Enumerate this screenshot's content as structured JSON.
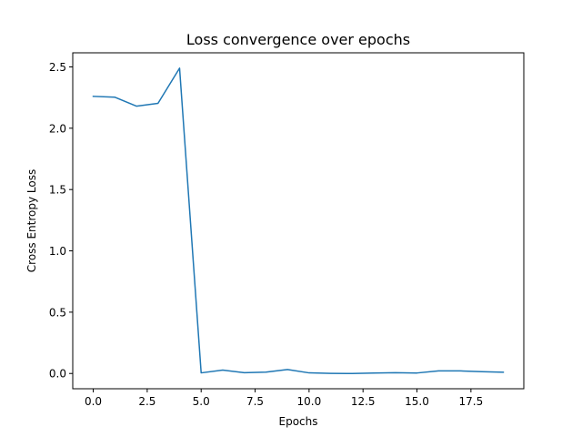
{
  "chart_data": {
    "type": "line",
    "title": "Loss convergence over epochs",
    "xlabel": "Epochs",
    "ylabel": "Cross Entropy Loss",
    "xlim": [
      -0.95,
      19.95
    ],
    "ylim": [
      -0.1245,
      2.615
    ],
    "xticks": [
      0.0,
      2.5,
      5.0,
      7.5,
      10.0,
      12.5,
      15.0,
      17.5
    ],
    "xtick_labels": [
      "0.0",
      "2.5",
      "5.0",
      "7.5",
      "10.0",
      "12.5",
      "15.0",
      "17.5"
    ],
    "yticks": [
      0.0,
      0.5,
      1.0,
      1.5,
      2.0,
      2.5
    ],
    "ytick_labels": [
      "0.0",
      "0.5",
      "1.0",
      "1.5",
      "2.0",
      "2.5"
    ],
    "grid": false,
    "series": [
      {
        "color": "#1f77b4",
        "x": [
          0,
          1,
          2,
          3,
          4,
          5,
          6,
          7,
          8,
          9,
          10,
          11,
          12,
          13,
          14,
          15,
          16,
          17,
          18,
          19
        ],
        "y": [
          2.26,
          2.253,
          2.18,
          2.203,
          2.49,
          0.005,
          0.028,
          0.006,
          0.011,
          0.032,
          0.005,
          0.001,
          0.0,
          0.004,
          0.006,
          0.004,
          0.021,
          0.021,
          0.015,
          0.01
        ]
      }
    ]
  }
}
